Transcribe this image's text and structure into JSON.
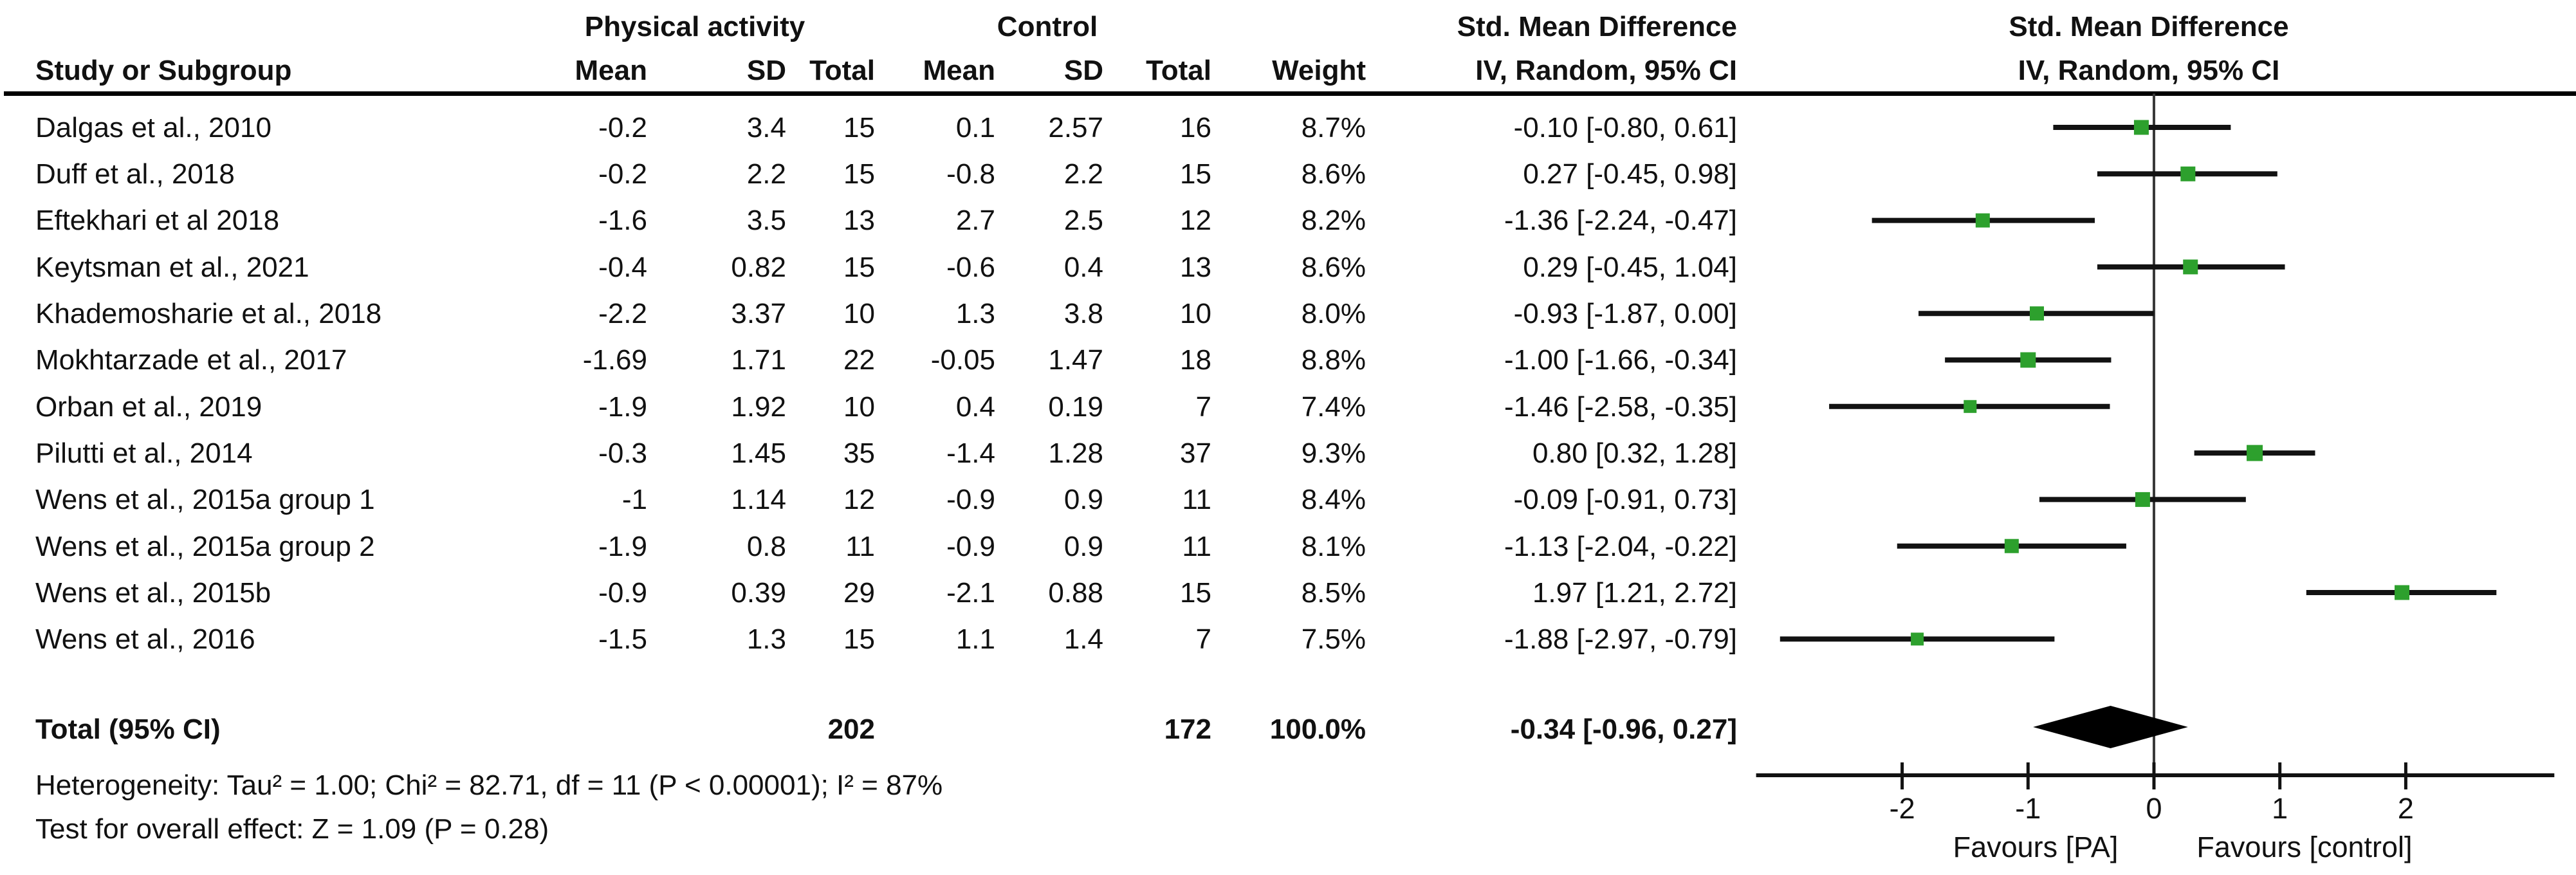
{
  "header": {
    "study_col": "Study or Subgroup",
    "group1": "Physical activity",
    "group2": "Control",
    "mean": "Mean",
    "sd": "SD",
    "total": "Total",
    "weight": "Weight",
    "effect_line1": "Std. Mean Difference",
    "effect_line2": "IV, Random, 95% CI",
    "plot_line1": "Std. Mean Difference",
    "plot_line2": "IV, Random, 95% CI"
  },
  "studies": [
    {
      "label": "Dalgas et al., 2010",
      "pa_mean": "-0.2",
      "pa_sd": "3.4",
      "pa_total": "15",
      "c_mean": "0.1",
      "c_sd": "2.57",
      "c_total": "16",
      "weight": "8.7%",
      "smd_ci": "-0.10 [-0.80, 0.61]"
    },
    {
      "label": "Duff et al., 2018",
      "pa_mean": "-0.2",
      "pa_sd": "2.2",
      "pa_total": "15",
      "c_mean": "-0.8",
      "c_sd": "2.2",
      "c_total": "15",
      "weight": "8.6%",
      "smd_ci": "0.27 [-0.45, 0.98]"
    },
    {
      "label": "Eftekhari et al 2018",
      "pa_mean": "-1.6",
      "pa_sd": "3.5",
      "pa_total": "13",
      "c_mean": "2.7",
      "c_sd": "2.5",
      "c_total": "12",
      "weight": "8.2%",
      "smd_ci": "-1.36 [-2.24, -0.47]"
    },
    {
      "label": "Keytsman et al., 2021",
      "pa_mean": "-0.4",
      "pa_sd": "0.82",
      "pa_total": "15",
      "c_mean": "-0.6",
      "c_sd": "0.4",
      "c_total": "13",
      "weight": "8.6%",
      "smd_ci": "0.29 [-0.45, 1.04]"
    },
    {
      "label": "Khademosharie et al., 2018",
      "pa_mean": "-2.2",
      "pa_sd": "3.37",
      "pa_total": "10",
      "c_mean": "1.3",
      "c_sd": "3.8",
      "c_total": "10",
      "weight": "8.0%",
      "smd_ci": "-0.93 [-1.87, 0.00]"
    },
    {
      "label": "Mokhtarzade et al., 2017",
      "pa_mean": "-1.69",
      "pa_sd": "1.71",
      "pa_total": "22",
      "c_mean": "-0.05",
      "c_sd": "1.47",
      "c_total": "18",
      "weight": "8.8%",
      "smd_ci": "-1.00 [-1.66, -0.34]"
    },
    {
      "label": "Orban et al., 2019",
      "pa_mean": "-1.9",
      "pa_sd": "1.92",
      "pa_total": "10",
      "c_mean": "0.4",
      "c_sd": "0.19",
      "c_total": "7",
      "weight": "7.4%",
      "smd_ci": "-1.46 [-2.58, -0.35]"
    },
    {
      "label": "Pilutti et al., 2014",
      "pa_mean": "-0.3",
      "pa_sd": "1.45",
      "pa_total": "35",
      "c_mean": "-1.4",
      "c_sd": "1.28",
      "c_total": "37",
      "weight": "9.3%",
      "smd_ci": "0.80 [0.32, 1.28]"
    },
    {
      "label": "Wens et al., 2015a group 1",
      "pa_mean": "-1",
      "pa_sd": "1.14",
      "pa_total": "12",
      "c_mean": "-0.9",
      "c_sd": "0.9",
      "c_total": "11",
      "weight": "8.4%",
      "smd_ci": "-0.09 [-0.91, 0.73]"
    },
    {
      "label": "Wens et al., 2015a group 2",
      "pa_mean": "-1.9",
      "pa_sd": "0.8",
      "pa_total": "11",
      "c_mean": "-0.9",
      "c_sd": "0.9",
      "c_total": "11",
      "weight": "8.1%",
      "smd_ci": "-1.13 [-2.04, -0.22]"
    },
    {
      "label": "Wens et al., 2015b",
      "pa_mean": "-0.9",
      "pa_sd": "0.39",
      "pa_total": "29",
      "c_mean": "-2.1",
      "c_sd": "0.88",
      "c_total": "15",
      "weight": "8.5%",
      "smd_ci": "1.97 [1.21, 2.72]"
    },
    {
      "label": "Wens et al., 2016",
      "pa_mean": "-1.5",
      "pa_sd": "1.3",
      "pa_total": "15",
      "c_mean": "1.1",
      "c_sd": "1.4",
      "c_total": "7",
      "weight": "7.5%",
      "smd_ci": "-1.88 [-2.97, -0.79]"
    }
  ],
  "total_row": {
    "label": "Total (95% CI)",
    "pa_total": "202",
    "c_total": "172",
    "weight": "100.0%",
    "smd_ci": "-0.34 [-0.96, 0.27]"
  },
  "footnotes": {
    "heterogeneity": "Heterogeneity: Tau² = 1.00; Chi² = 82.71, df = 11 (P < 0.00001); I² = 87%",
    "overall_effect": "Test for overall effect: Z = 1.09 (P = 0.28)"
  },
  "chart_data": {
    "type": "forest",
    "title": "Std. Mean Difference",
    "subtitle": "IV, Random, 95% CI",
    "x_ticks": [
      -2,
      -1,
      0,
      1,
      2
    ],
    "x_range": [
      -3.16,
      3.18
    ],
    "zero_line": 0,
    "favours_left": "Favours [PA]",
    "favours_right": "Favours [control]",
    "series": [
      {
        "name": "Dalgas et al., 2010",
        "est": -0.1,
        "lo": -0.8,
        "hi": 0.61,
        "weight_pct": 8.7
      },
      {
        "name": "Duff et al., 2018",
        "est": 0.27,
        "lo": -0.45,
        "hi": 0.98,
        "weight_pct": 8.6
      },
      {
        "name": "Eftekhari et al 2018",
        "est": -1.36,
        "lo": -2.24,
        "hi": -0.47,
        "weight_pct": 8.2
      },
      {
        "name": "Keytsman et al., 2021",
        "est": 0.29,
        "lo": -0.45,
        "hi": 1.04,
        "weight_pct": 8.6
      },
      {
        "name": "Khademosharie et al., 2018",
        "est": -0.93,
        "lo": -1.87,
        "hi": 0.0,
        "weight_pct": 8.0
      },
      {
        "name": "Mokhtarzade et al., 2017",
        "est": -1.0,
        "lo": -1.66,
        "hi": -0.34,
        "weight_pct": 8.8
      },
      {
        "name": "Orban et al., 2019",
        "est": -1.46,
        "lo": -2.58,
        "hi": -0.35,
        "weight_pct": 7.4
      },
      {
        "name": "Pilutti et al., 2014",
        "est": 0.8,
        "lo": 0.32,
        "hi": 1.28,
        "weight_pct": 9.3
      },
      {
        "name": "Wens et al., 2015a group 1",
        "est": -0.09,
        "lo": -0.91,
        "hi": 0.73,
        "weight_pct": 8.4
      },
      {
        "name": "Wens et al., 2015a group 2",
        "est": -1.13,
        "lo": -2.04,
        "hi": -0.22,
        "weight_pct": 8.1
      },
      {
        "name": "Wens et al., 2015b",
        "est": 1.97,
        "lo": 1.21,
        "hi": 2.72,
        "weight_pct": 8.5
      },
      {
        "name": "Wens et al., 2016",
        "est": -1.88,
        "lo": -2.97,
        "hi": -0.79,
        "weight_pct": 7.5
      }
    ],
    "total": {
      "name": "Total (95% CI)",
      "est": -0.34,
      "lo": -0.96,
      "hi": 0.27,
      "weight_pct": 100.0
    }
  },
  "colors": {
    "marker_green": "#2DA02D",
    "line_black": "#121212",
    "diamond_black": "#000000"
  }
}
